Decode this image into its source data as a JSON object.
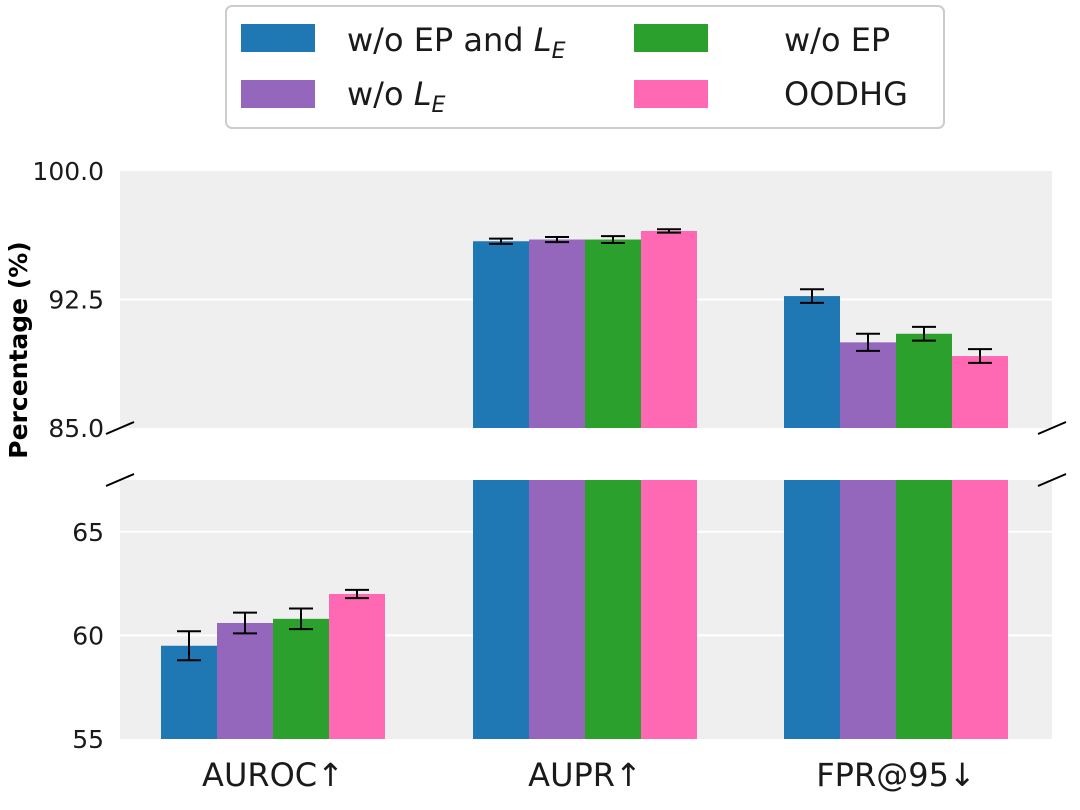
{
  "chart_data": {
    "type": "bar",
    "title": "",
    "xlabel": "",
    "ylabel": "Percentage (%)",
    "categories": [
      "AUROC↑",
      "AUPR↑",
      "FPR@95↓"
    ],
    "axis_break": {
      "upper_ylim": [
        85,
        100
      ],
      "lower_ylim": [
        55,
        67.5
      ],
      "upper_ticks": [
        "85.0",
        "92.5",
        "100.0"
      ],
      "upper_tick_values": [
        85,
        92.5,
        100
      ],
      "lower_ticks": [
        "55",
        "60",
        "65"
      ],
      "lower_tick_values": [
        55,
        60,
        65
      ]
    },
    "series": [
      {
        "name": "w/o EP and L_E",
        "legend_main": "w/o EP and ",
        "legend_math": "L",
        "legend_sub": "E",
        "color": "#1f77b4",
        "values": [
          59.5,
          95.9,
          92.7
        ],
        "errors": [
          0.7,
          0.15,
          0.4
        ]
      },
      {
        "name": "w/o L_E",
        "legend_main": "w/o ",
        "legend_math": "L",
        "legend_sub": "E",
        "color": "#9467bd",
        "values": [
          60.6,
          96.0,
          90.0
        ],
        "errors": [
          0.5,
          0.15,
          0.5
        ]
      },
      {
        "name": "w/o EP",
        "legend_main": "w/o EP",
        "legend_math": "",
        "legend_sub": "",
        "color": "#2ca02c",
        "values": [
          60.8,
          96.0,
          90.5
        ],
        "errors": [
          0.5,
          0.2,
          0.4
        ]
      },
      {
        "name": "OODHG",
        "legend_main": "OODHG",
        "legend_math": "",
        "legend_sub": "",
        "color": "#ff69b4",
        "values": [
          62.0,
          96.5,
          89.2
        ],
        "errors": [
          0.2,
          0.1,
          0.4
        ]
      }
    ],
    "legend_position": "top-center",
    "grid": true
  }
}
